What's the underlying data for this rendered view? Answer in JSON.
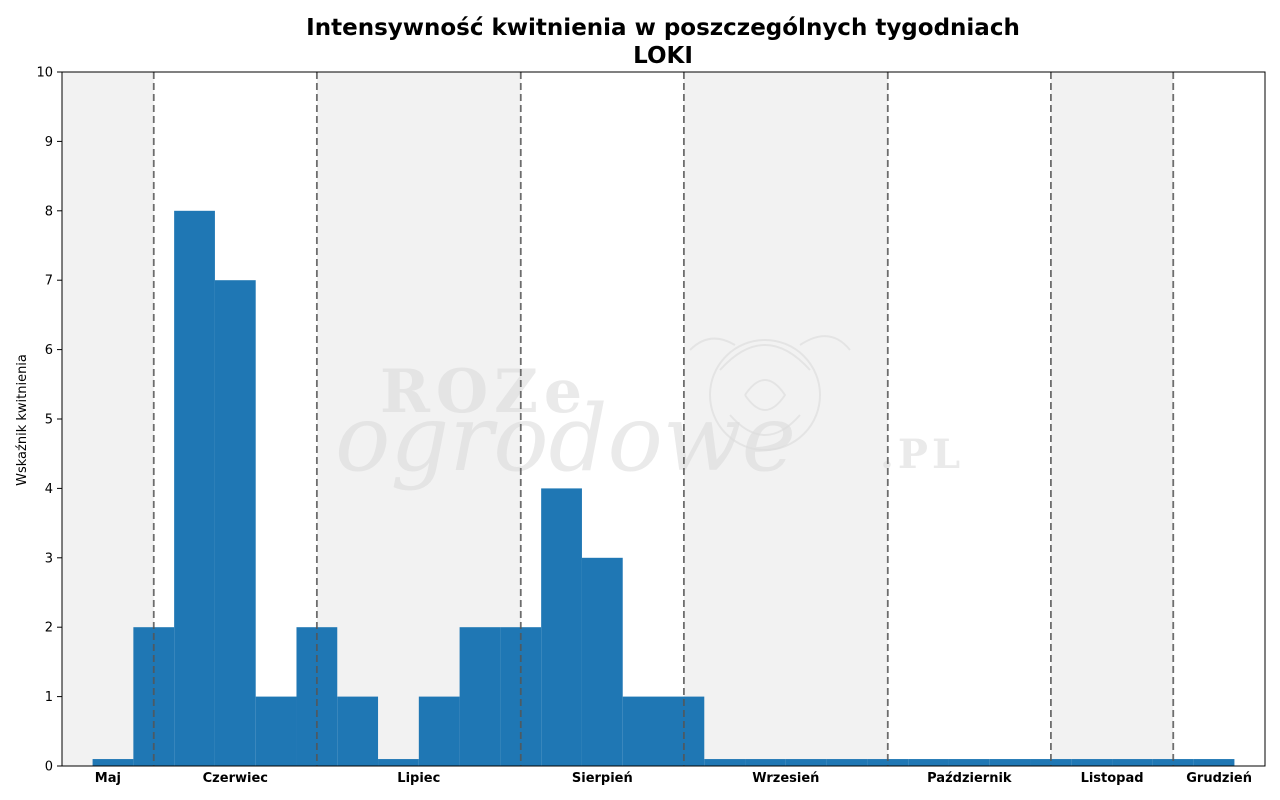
{
  "chart_data": {
    "type": "bar",
    "title": "Intensywność kwitnienia w poszczególnych tygodniach",
    "subtitle": "LOKI",
    "ylabel": "Wskaźnik kwitnienia",
    "xlabel": "",
    "ylim": [
      0,
      10
    ],
    "yticks": [
      0,
      1,
      2,
      3,
      4,
      5,
      6,
      7,
      8,
      9,
      10
    ],
    "grid": false,
    "bar_color": "#1f77b4",
    "shade_color": "#f2f2f2",
    "separator_color": "#555555",
    "xlim": [
      0,
      29.5
    ],
    "months": [
      {
        "label": "Maj",
        "start": 0,
        "end": 2.25,
        "shaded": true
      },
      {
        "label": "Czerwiec",
        "start": 2.25,
        "end": 6.25,
        "shaded": false
      },
      {
        "label": "Lipiec",
        "start": 6.25,
        "end": 11.25,
        "shaded": true
      },
      {
        "label": "Sierpień",
        "start": 11.25,
        "end": 15.25,
        "shaded": false
      },
      {
        "label": "Wrzesień",
        "start": 15.25,
        "end": 20.25,
        "shaded": true
      },
      {
        "label": "Październik",
        "start": 20.25,
        "end": 24.25,
        "shaded": false
      },
      {
        "label": "Listopad",
        "start": 24.25,
        "end": 27.25,
        "shaded": true
      },
      {
        "label": "Grudzień",
        "start": 27.25,
        "end": 29.5,
        "shaded": false
      }
    ],
    "weeks": [
      1.25,
      2.25,
      3.25,
      4.25,
      5.25,
      6.25,
      7.25,
      8.25,
      9.25,
      10.25,
      11.25,
      12.25,
      13.25,
      14.25,
      15.25,
      16.25,
      17.25,
      18.25,
      19.25,
      20.25,
      21.25,
      22.25,
      23.25,
      24.25,
      25.25,
      26.25,
      27.25,
      28.25
    ],
    "values": [
      0.1,
      2,
      8,
      7,
      1,
      2,
      1,
      0.1,
      1,
      2,
      2,
      4,
      3,
      1,
      1,
      0.1,
      0.1,
      0.1,
      0.1,
      0.1,
      0.1,
      0.1,
      0.1,
      0.1,
      0.1,
      0.1,
      0.1,
      0.1
    ]
  },
  "watermark": {
    "line1": "ROZe",
    "line2": "ogrodowe",
    "suffix": ".PL"
  }
}
